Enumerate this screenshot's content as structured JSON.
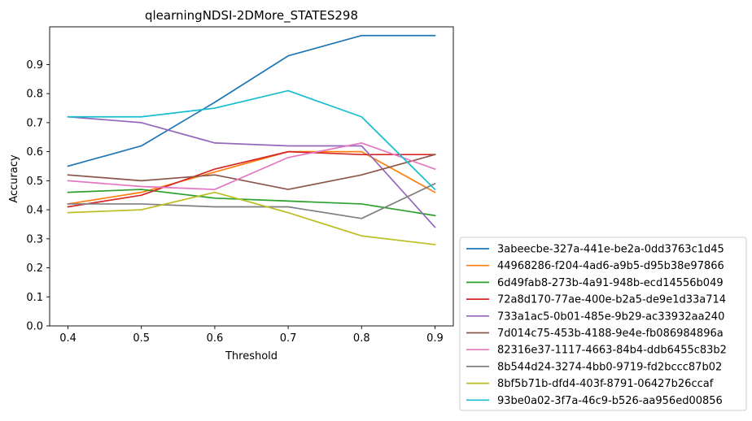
{
  "chart_data": {
    "type": "line",
    "title": "qlearningNDSI-2DMore_STATES298",
    "xlabel": "Threshold",
    "ylabel": "Accuracy",
    "x": [
      0.4,
      0.5,
      0.6,
      0.7,
      0.8,
      0.9
    ],
    "xticks": [
      "0.4",
      "0.5",
      "0.6",
      "0.7",
      "0.8",
      "0.9"
    ],
    "yticks": [
      "0.0",
      "0.1",
      "0.2",
      "0.3",
      "0.4",
      "0.5",
      "0.6",
      "0.7",
      "0.8",
      "0.9"
    ],
    "xlim": [
      0.375,
      0.925
    ],
    "ylim": [
      0.0,
      1.03
    ],
    "grid": false,
    "legend_position": "outside-lower-right",
    "series": [
      {
        "name": "3abeecbe-327a-441e-be2a-0dd3763c1d45",
        "color": "#1f77b4",
        "values": [
          0.55,
          0.62,
          0.77,
          0.93,
          1.0,
          1.0
        ]
      },
      {
        "name": "44968286-f204-4ad6-a9b5-d95b38e97866",
        "color": "#ff7f0e",
        "values": [
          0.42,
          0.46,
          0.53,
          0.6,
          0.6,
          0.46
        ]
      },
      {
        "name": "6d49fab8-273b-4a91-948b-ecd14556b049",
        "color": "#2ca02c",
        "values": [
          0.46,
          0.47,
          0.44,
          0.43,
          0.42,
          0.38
        ]
      },
      {
        "name": "72a8d170-77ae-400e-b2a5-de9e1d33a714",
        "color": "#d62728",
        "values": [
          0.41,
          0.45,
          0.54,
          0.6,
          0.59,
          0.59
        ]
      },
      {
        "name": "733a1ac5-0b01-485e-9b29-ac33932aa240",
        "color": "#9467bd",
        "values": [
          0.72,
          0.7,
          0.63,
          0.62,
          0.62,
          0.34
        ]
      },
      {
        "name": "7d014c75-453b-4188-9e4e-fb086984896a",
        "color": "#8c564b",
        "values": [
          0.52,
          0.5,
          0.52,
          0.47,
          0.52,
          0.59
        ]
      },
      {
        "name": "82316e37-1117-4663-84b4-ddb6455c83b2",
        "color": "#e377c2",
        "values": [
          0.5,
          0.48,
          0.47,
          0.58,
          0.63,
          0.54
        ]
      },
      {
        "name": "8b544d24-3274-4bb0-9719-fd2bccc87b02",
        "color": "#7f7f7f",
        "values": [
          0.42,
          0.42,
          0.41,
          0.41,
          0.37,
          0.49
        ]
      },
      {
        "name": "8bf5b71b-dfd4-403f-8791-06427b26ccaf",
        "color": "#bcbd22",
        "values": [
          0.39,
          0.4,
          0.46,
          0.39,
          0.31,
          0.28
        ]
      },
      {
        "name": "93be0a02-3f7a-46c9-b526-aa956ed00856",
        "color": "#17becf",
        "values": [
          0.72,
          0.72,
          0.75,
          0.81,
          0.72,
          0.47
        ]
      }
    ]
  }
}
